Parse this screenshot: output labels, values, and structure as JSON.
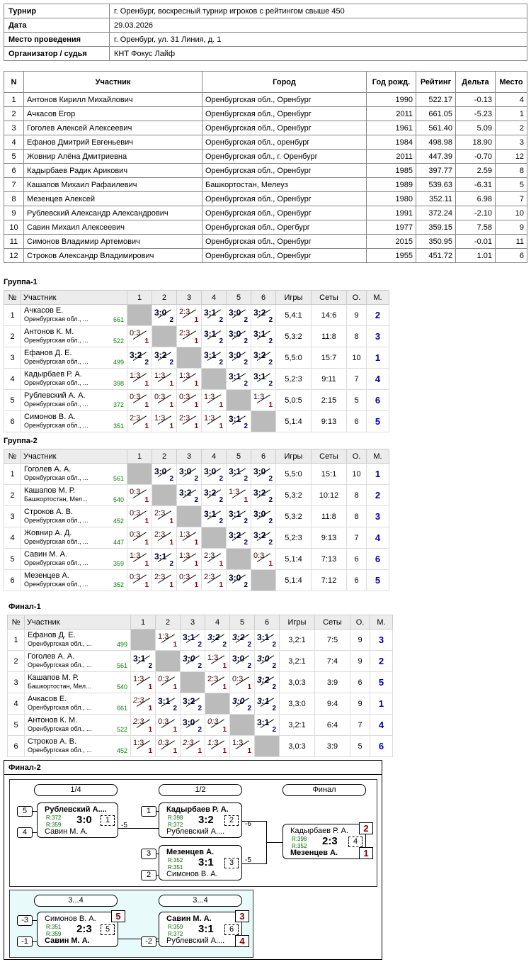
{
  "info": {
    "tournament_k": "Турнир",
    "tournament_v": "г. Оренбург, воскресный турнир игроков с рейтингом свыше 450",
    "date_k": "Дата",
    "date_v": "29.03.2026",
    "place_k": "Место проведения",
    "place_v": "г. Оренбург, ул. 31 Линия, д. 1",
    "org_k": "Организатор / судья",
    "org_v": "КНТ Фокус Лайф"
  },
  "participants": {
    "headers": [
      "N",
      "Участник",
      "Город",
      "Год рожд.",
      "Рейтинг",
      "Дельта",
      "Место"
    ],
    "rows": [
      [
        "1",
        "Антонов Кирилл Михайлович",
        "Оренбургская обл., Оренбург",
        "1990",
        "522.17",
        "-0.13",
        "4"
      ],
      [
        "2",
        "Ачкасов Егор",
        "Оренбургская обл., Оренбург",
        "2011",
        "661.05",
        "-5.23",
        "1"
      ],
      [
        "3",
        "Гоголев Алексей Алексеевич",
        "Оренбургская обл., Оренбург",
        "1961",
        "561.40",
        "5.09",
        "2"
      ],
      [
        "4",
        "Ефанов Дмитрий Евгеньевич",
        "Оренбургская обл., оренбург",
        "1984",
        "498.98",
        "18.90",
        "3"
      ],
      [
        "5",
        "Жовнир Алёна Дмитриевна",
        "Оренбургская обл., г. Оренбург",
        "2011",
        "447.39",
        "-0.70",
        "12"
      ],
      [
        "6",
        "Кадырбаев Радик Арикович",
        "Оренбургская обл., Оренбург",
        "1985",
        "397.77",
        "2.59",
        "8"
      ],
      [
        "7",
        "Кашапов Михаил Рафаилевич",
        "Башкортостан, Мелеуз",
        "1989",
        "539.63",
        "-6.31",
        "5"
      ],
      [
        "8",
        "Мезенцев Алексей",
        "Оренбургская обл., Оренбург",
        "1980",
        "352.11",
        "6.98",
        "7"
      ],
      [
        "9",
        "Рублевский Александр Александрович",
        "Оренбургская обл., Оренбург",
        "1991",
        "372.24",
        "-2.10",
        "10"
      ],
      [
        "10",
        "Савин Михаил Алексеевич",
        "Оренбургская обл., Орегбург",
        "1977",
        "359.15",
        "7.58",
        "9"
      ],
      [
        "11",
        "Симонов Владимир Артемович",
        "Оренбургская обл., Оренбург",
        "2015",
        "350.95",
        "-0.01",
        "11"
      ],
      [
        "12",
        "Строков Александр Владимирович",
        "Оренбургская обл., Оренбург",
        "1955",
        "451.72",
        "1.01",
        "6"
      ]
    ]
  },
  "group_headers": [
    "№",
    "Участник",
    "1",
    "2",
    "3",
    "4",
    "5",
    "6",
    "Игры",
    "Сеты",
    "О.",
    "М."
  ],
  "groups": [
    {
      "title": "Группа-1",
      "rows": [
        {
          "n": "1",
          "name": "Ачкасов Е.",
          "city": "Оренбургская обл., ...",
          "rating": "661",
          "cells": [
            null,
            [
              "3:0",
              "2",
              "w"
            ],
            [
              "2:3",
              "1",
              "l"
            ],
            [
              "3:1",
              "2",
              "w"
            ],
            [
              "3:0",
              "2",
              "w"
            ],
            [
              "3:2",
              "2",
              "w"
            ]
          ],
          "games": "5,4:1",
          "sets": "14:6",
          "pts": "9",
          "place": "2"
        },
        {
          "n": "2",
          "name": "Антонов К. М.",
          "city": "Оренбургская обл., ...",
          "rating": "522",
          "cells": [
            [
              "0:3",
              "1",
              "l"
            ],
            null,
            [
              "2:3",
              "1",
              "l"
            ],
            [
              "3:1",
              "2",
              "w"
            ],
            [
              "3:0",
              "2",
              "w"
            ],
            [
              "3:1",
              "2",
              "w"
            ]
          ],
          "games": "5,3:2",
          "sets": "11:8",
          "pts": "8",
          "place": "3"
        },
        {
          "n": "3",
          "name": "Ефанов Д. Е.",
          "city": "Оренбургская обл., ...",
          "rating": "499",
          "cells": [
            [
              "3:2",
              "2",
              "w"
            ],
            [
              "3:2",
              "2",
              "w"
            ],
            null,
            [
              "3:1",
              "2",
              "w"
            ],
            [
              "3:0",
              "2",
              "w"
            ],
            [
              "3:2",
              "2",
              "w"
            ]
          ],
          "games": "5,5:0",
          "sets": "15:7",
          "pts": "10",
          "place": "1"
        },
        {
          "n": "4",
          "name": "Кадырбаев Р. А.",
          "city": "Оренбургская обл., ...",
          "rating": "398",
          "cells": [
            [
              "1:3",
              "1",
              "l"
            ],
            [
              "1:3",
              "1",
              "l"
            ],
            [
              "1:3",
              "1",
              "l"
            ],
            null,
            [
              "3:1",
              "2",
              "w"
            ],
            [
              "3:1",
              "2",
              "w"
            ]
          ],
          "games": "5,2:3",
          "sets": "9:11",
          "pts": "7",
          "place": "4"
        },
        {
          "n": "5",
          "name": "Рублевский А. А.",
          "city": "Оренбургская обл., ...",
          "rating": "372",
          "cells": [
            [
              "0:3",
              "1",
              "l"
            ],
            [
              "0:3",
              "1",
              "l"
            ],
            [
              "0:3",
              "1",
              "l"
            ],
            [
              "1:3",
              "1",
              "l"
            ],
            null,
            [
              "1:3",
              "1",
              "l"
            ]
          ],
          "games": "5,0:5",
          "sets": "2:15",
          "pts": "5",
          "place": "6"
        },
        {
          "n": "6",
          "name": "Симонов В. А.",
          "city": "Оренбургская обл., ...",
          "rating": "351",
          "cells": [
            [
              "2:3",
              "1",
              "l"
            ],
            [
              "1:3",
              "1",
              "l"
            ],
            [
              "2:3",
              "1",
              "l"
            ],
            [
              "1:3",
              "1",
              "l"
            ],
            [
              "3:1",
              "2",
              "w"
            ],
            null
          ],
          "games": "5,1:4",
          "sets": "9:13",
          "pts": "6",
          "place": "5"
        }
      ]
    },
    {
      "title": "Группа-2",
      "rows": [
        {
          "n": "1",
          "name": "Гоголев А. А.",
          "city": "Оренбургская обл., ...",
          "rating": "561",
          "cells": [
            null,
            [
              "3:0",
              "2",
              "w"
            ],
            [
              "3:0",
              "2",
              "w"
            ],
            [
              "3:0",
              "2",
              "w"
            ],
            [
              "3:1",
              "2",
              "w"
            ],
            [
              "3:0",
              "2",
              "w"
            ]
          ],
          "games": "5,5:0",
          "sets": "15:1",
          "pts": "10",
          "place": "1"
        },
        {
          "n": "2",
          "name": "Кашапов М. Р.",
          "city": "Башкортостан, Мел...",
          "rating": "540",
          "cells": [
            [
              "0:3",
              "1",
              "l"
            ],
            null,
            [
              "3:2",
              "2",
              "w"
            ],
            [
              "3:2",
              "2",
              "w"
            ],
            [
              "1:3",
              "1",
              "l"
            ],
            [
              "3:2",
              "2",
              "w"
            ]
          ],
          "games": "5,3:2",
          "sets": "10:12",
          "pts": "8",
          "place": "2"
        },
        {
          "n": "3",
          "name": "Строков А. В.",
          "city": "Оренбургская обл., ...",
          "rating": "452",
          "cells": [
            [
              "0:3",
              "1",
              "l"
            ],
            [
              "2:3",
              "1",
              "l"
            ],
            null,
            [
              "3:1",
              "2",
              "w"
            ],
            [
              "3:1",
              "2",
              "w"
            ],
            [
              "3:0",
              "2",
              "w"
            ]
          ],
          "games": "5,3:2",
          "sets": "11:8",
          "pts": "8",
          "place": "3"
        },
        {
          "n": "4",
          "name": "Жовнир А. Д.",
          "city": "Оренбургская обл., ...",
          "rating": "447",
          "cells": [
            [
              "0:3",
              "1",
              "l"
            ],
            [
              "2:3",
              "1",
              "l"
            ],
            [
              "1:3",
              "1",
              "l"
            ],
            null,
            [
              "3:2",
              "2",
              "w"
            ],
            [
              "3:2",
              "2",
              "w"
            ]
          ],
          "games": "5,2:3",
          "sets": "9:13",
          "pts": "7",
          "place": "4"
        },
        {
          "n": "5",
          "name": "Савин М. А.",
          "city": "Оренбургская обл., ...",
          "rating": "359",
          "cells": [
            [
              "1:3",
              "1",
              "l"
            ],
            [
              "3:1",
              "2",
              "w"
            ],
            [
              "1:3",
              "1",
              "l"
            ],
            [
              "2:3",
              "1",
              "l"
            ],
            null,
            [
              "0:3",
              "1",
              "l"
            ]
          ],
          "games": "5,1:4",
          "sets": "7:13",
          "pts": "6",
          "place": "6"
        },
        {
          "n": "6",
          "name": "Мезенцев А.",
          "city": "Оренбургская обл., ...",
          "rating": "352",
          "cells": [
            [
              "0:3",
              "1",
              "l"
            ],
            [
              "2:3",
              "1",
              "l"
            ],
            [
              "0:3",
              "1",
              "l"
            ],
            [
              "2:3",
              "1",
              "l"
            ],
            [
              "3:0",
              "2",
              "w"
            ],
            null
          ],
          "games": "5,1:4",
          "sets": "7:12",
          "pts": "6",
          "place": "5"
        }
      ]
    },
    {
      "title": "Финал-1",
      "rows": [
        {
          "n": "1",
          "name": "Ефанов Д. Е.",
          "city": "Оренбургская обл., ...",
          "rating": "499",
          "cells": [
            null,
            [
              "1:3",
              "1",
              "l"
            ],
            [
              "3:1",
              "2",
              "w"
            ],
            [
              "3:2",
              "2",
              "wi"
            ],
            [
              "3:2",
              "2",
              "wi"
            ],
            [
              "3:1",
              "2",
              "w"
            ]
          ],
          "games": "3,2:1",
          "sets": "7:5",
          "pts": "9",
          "place": "3"
        },
        {
          "n": "2",
          "name": "Гоголев А. А.",
          "city": "Оренбургская обл., ...",
          "rating": "561",
          "cells": [
            [
              "3:1",
              "2",
              "w"
            ],
            null,
            [
              "3:0",
              "2",
              "wi"
            ],
            [
              "1:3",
              "1",
              "l"
            ],
            [
              "3:0",
              "2",
              "w"
            ],
            [
              "3:0",
              "2",
              "wi"
            ]
          ],
          "games": "3,2:1",
          "sets": "7:4",
          "pts": "9",
          "place": "2"
        },
        {
          "n": "3",
          "name": "Кашапов М. Р.",
          "city": "Башкортостан, Мел...",
          "rating": "540",
          "cells": [
            [
              "1:3",
              "1",
              "l"
            ],
            [
              "0:3",
              "1",
              "li"
            ],
            null,
            [
              "2:3",
              "1",
              "l"
            ],
            [
              "0:3",
              "1",
              "l"
            ],
            [
              "3:2",
              "2",
              "wi"
            ]
          ],
          "games": "3,0:3",
          "sets": "3:9",
          "pts": "6",
          "place": "5"
        },
        {
          "n": "4",
          "name": "Ачкасов Е.",
          "city": "Оренбургская обл., ...",
          "rating": "661",
          "cells": [
            [
              "2:3",
              "1",
              "li"
            ],
            [
              "3:1",
              "2",
              "w"
            ],
            [
              "3:2",
              "2",
              "w"
            ],
            null,
            [
              "3:0",
              "2",
              "wi"
            ],
            [
              "3:1",
              "2",
              "wi"
            ]
          ],
          "games": "3,3:0",
          "sets": "9:4",
          "pts": "9",
          "place": "1"
        },
        {
          "n": "5",
          "name": "Антонов К. М.",
          "city": "Оренбургская обл., ...",
          "rating": "522",
          "cells": [
            [
              "2:3",
              "1",
              "li"
            ],
            [
              "0:3",
              "1",
              "l"
            ],
            [
              "3:0",
              "2",
              "w"
            ],
            [
              "0:3",
              "1",
              "li"
            ],
            null,
            [
              "3:1",
              "2",
              "w"
            ]
          ],
          "games": "3,2:1",
          "sets": "6:4",
          "pts": "7",
          "place": "4"
        },
        {
          "n": "6",
          "name": "Строков А. В.",
          "city": "Оренбургская обл., ...",
          "rating": "452",
          "cells": [
            [
              "1:3",
              "1",
              "l"
            ],
            [
              "0:3",
              "1",
              "li"
            ],
            [
              "2:3",
              "1",
              "li"
            ],
            [
              "1:3",
              "1",
              "li"
            ],
            [
              "1:3",
              "1",
              "l"
            ],
            null
          ],
          "games": "3,0:3",
          "sets": "3:9",
          "pts": "5",
          "place": "6"
        }
      ]
    }
  ],
  "final2": {
    "title": "Финал-2",
    "labels": {
      "q": "1/4",
      "s": "1/2",
      "f": "Финал",
      "t1": "3...4",
      "t2": "3...4"
    },
    "m1": {
      "seedA": "5",
      "seedB": "4",
      "a": "Рублевский А....",
      "b": "Савин М. А.",
      "ra": "R:372",
      "rb": "R:359",
      "score": "3:0",
      "no": "1",
      "loss": "-5"
    },
    "m2": {
      "seedA": "1",
      "a": "Кадырбаев Р. А.",
      "b": "Рублевский А....",
      "ra": "R:398",
      "rb": "R:372",
      "score": "3:2",
      "no": "2",
      "loss": "-6"
    },
    "m3": {
      "seedA": "3",
      "seedB": "2",
      "a": "Мезенцев А.",
      "b": "Симонов В. А.",
      "ra": "R:352",
      "rb": "R:351",
      "score": "3:1",
      "no": "3",
      "loss": "-5"
    },
    "m4": {
      "a": "Кадырбаев Р. А.",
      "b": "Мезенцев А.",
      "ra": "R:398",
      "rb": "R:352",
      "score": "2:3",
      "no": "4",
      "pa": "2",
      "pb": "1"
    },
    "m5": {
      "seedA": "-3",
      "seedB": "-1",
      "a": "Симонов В. А.",
      "b": "Савин М. А.",
      "ra": "R:351",
      "rb": "R:359",
      "score": "2:3",
      "no": "5",
      "pa": "5"
    },
    "m6": {
      "seedB": "-2",
      "a": "Савин М. А.",
      "b": "Рублевский А....",
      "ra": "R:359",
      "rb": "R:372",
      "score": "3:1",
      "no": "6",
      "pa": "3",
      "pb": "4"
    }
  }
}
